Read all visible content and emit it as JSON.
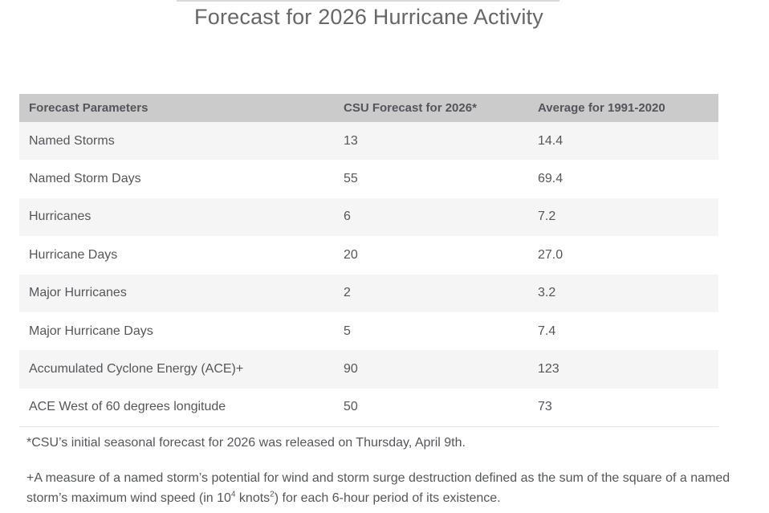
{
  "page": {
    "title": "Forecast for 2026 Hurricane Activity"
  },
  "chart_data": {
    "type": "table",
    "title": "Forecast for 2026 Hurricane Activity",
    "columns": [
      "Forecast Parameters",
      "CSU Forecast for 2026*",
      "Average for 1991-2020"
    ],
    "rows": [
      [
        "Named Storms",
        "13",
        "14.4"
      ],
      [
        "Named Storm Days",
        "55",
        "69.4"
      ],
      [
        "Hurricanes",
        "6",
        "7.2"
      ],
      [
        "Hurricane Days",
        "20",
        "27.0"
      ],
      [
        "Major Hurricanes",
        "2",
        "3.2"
      ],
      [
        "Major Hurricane Days",
        "5",
        "7.4"
      ],
      [
        "Accumulated Cyclone Energy (ACE)+",
        "90",
        "123"
      ],
      [
        "ACE West of 60 degrees longitude",
        "50",
        "73"
      ]
    ],
    "footnotes": {
      "release_note": "*CSU’s initial seasonal forecast for 2026 was released on Thursday, April 9th.",
      "ace_note": {
        "part1": "+A measure of a named storm’s potential for wind and storm surge destruction defined as the sum of the square of a named storm’s maximum wind speed (in 10",
        "sup1": "4",
        "part2": " knots",
        "sup2": "2",
        "part3": ") for each 6-hour period of its existence."
      }
    }
  },
  "colors": {
    "header_background": "#cbcbcb",
    "stripe_row_background": "#f5f5f5",
    "plain_row_background": "#ffffff",
    "text": "#55565b",
    "title_text": "#666769",
    "rule": "#d9d9d9"
  }
}
